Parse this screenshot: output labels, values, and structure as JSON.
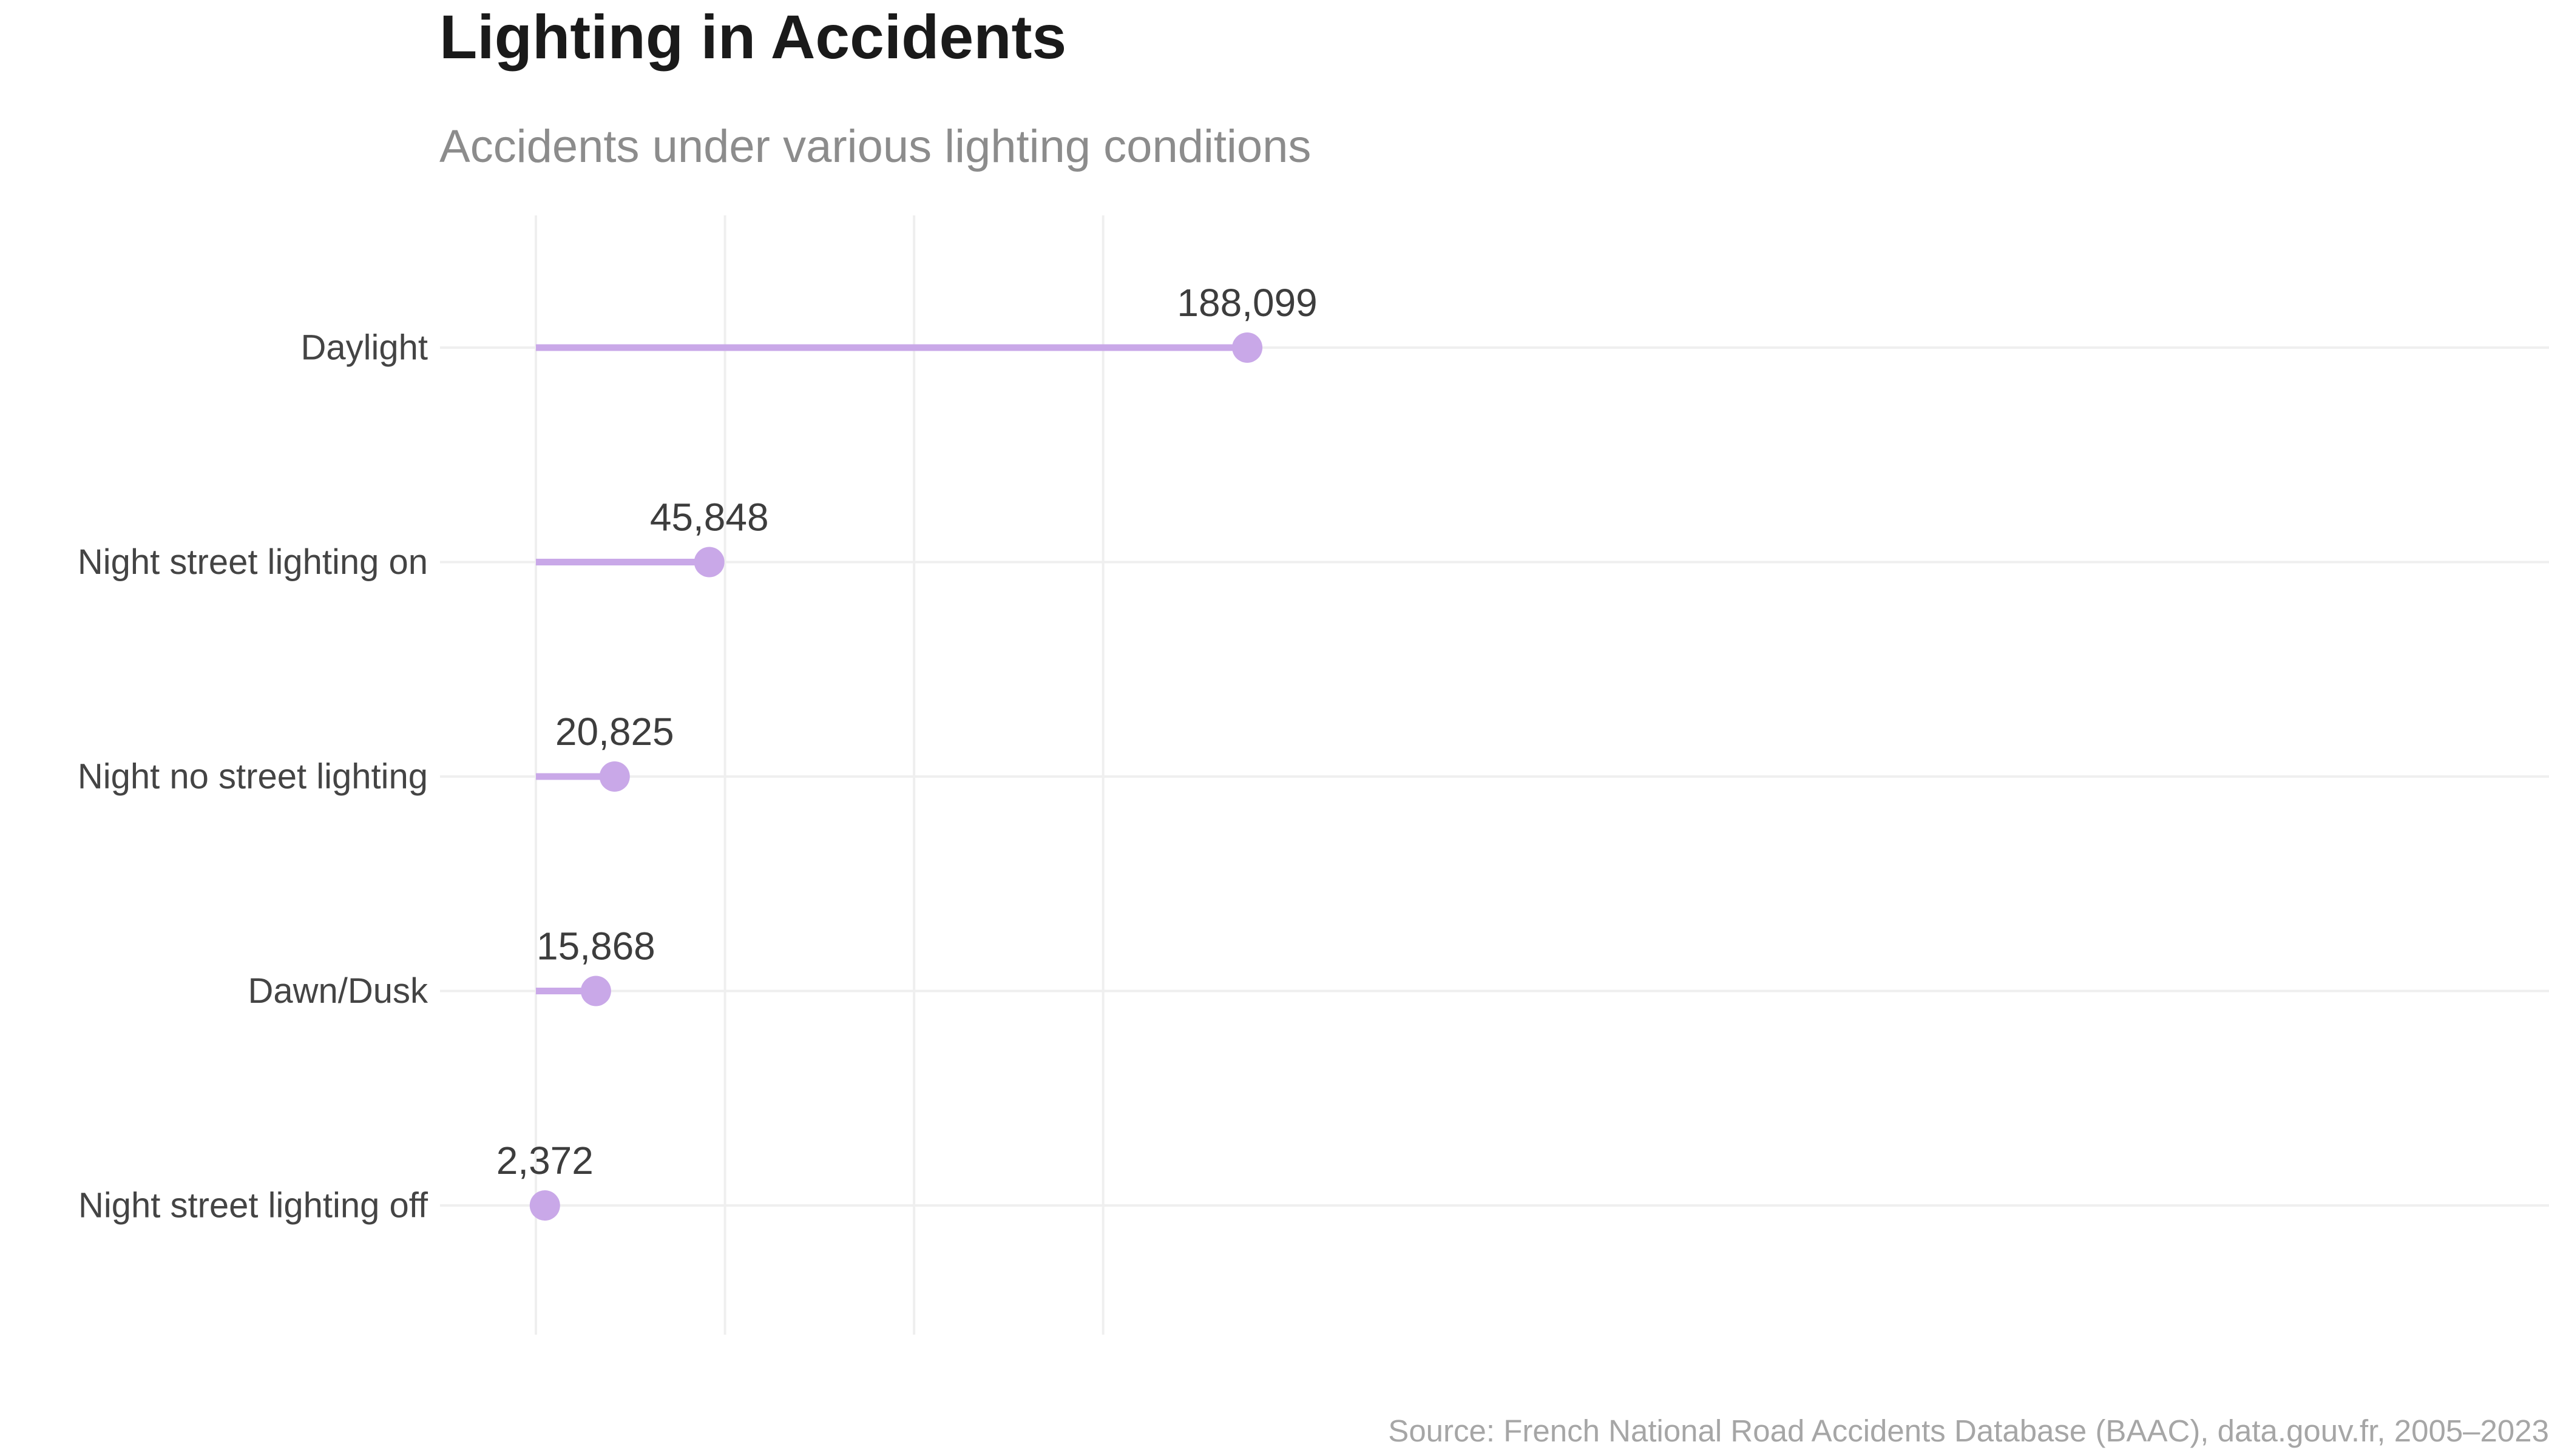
{
  "chart_data": {
    "type": "lollipop",
    "title": "Lighting in Accidents",
    "subtitle": "Accidents under various lighting conditions",
    "source": "Source: French National Road Accidents Database (BAAC), data.gouv.fr, 2005–2023",
    "categories": [
      "Daylight",
      "Night  street lighting on",
      "Night  no street lighting",
      "Dawn/Dusk",
      "Night  street lighting off"
    ],
    "values": [
      188099,
      45848,
      20825,
      15868,
      2372
    ],
    "value_labels": [
      "188,099",
      "45,848",
      "20,825",
      "15,868",
      "2,372"
    ],
    "xlim": [
      0,
      200000
    ],
    "x_gridlines": [
      0,
      50000,
      100000,
      150000
    ],
    "grid": true,
    "colors": {
      "stem": "#c9a8e8",
      "point": "#c9a8e8",
      "grid": "#efefef"
    }
  }
}
